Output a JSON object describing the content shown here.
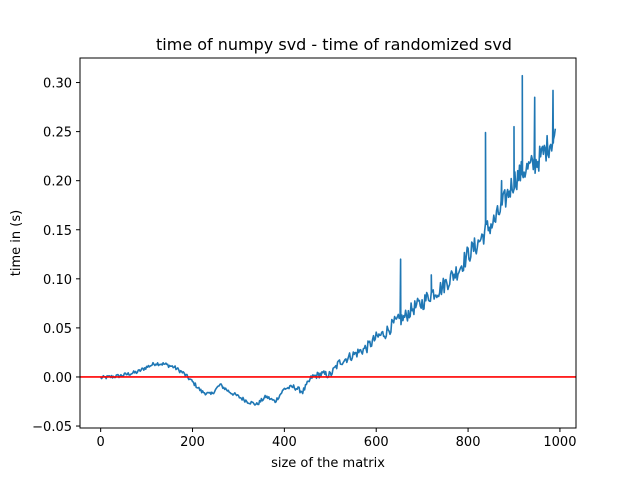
{
  "chart_data": {
    "type": "line",
    "title": "time of numpy svd - time of randomized svd",
    "xlabel": "size of the matrix",
    "ylabel": "time in (s)",
    "xlim": [
      -45,
      1035
    ],
    "ylim": [
      -0.052,
      0.325
    ],
    "xticks": [
      0,
      200,
      400,
      600,
      800,
      1000
    ],
    "yticks": [
      -0.05,
      0.0,
      0.05,
      0.1,
      0.15,
      0.2,
      0.25,
      0.3
    ],
    "xtick_labels": [
      "0",
      "200",
      "400",
      "600",
      "800",
      "1000"
    ],
    "ytick_labels": [
      "−0.05",
      "0.00",
      "0.05",
      "0.10",
      "0.15",
      "0.20",
      "0.25",
      "0.30"
    ],
    "grid": false,
    "series_color": "#1f77b4",
    "reference_line": {
      "y": 0.0,
      "color": "#ff0000"
    },
    "series": [
      {
        "x": [
          0,
          20,
          40,
          60,
          80,
          100,
          120,
          140,
          160,
          180,
          200,
          220,
          240,
          260,
          280,
          300,
          320,
          340,
          360,
          380,
          400,
          420,
          440,
          460,
          480,
          500,
          520,
          540,
          560,
          580,
          600,
          620,
          640,
          660,
          680,
          700,
          720,
          740,
          760,
          780,
          800,
          820,
          840,
          860,
          880,
          900,
          920,
          940,
          960,
          980,
          990
        ],
        "y": [
          -0.001,
          0.0,
          0.001,
          0.003,
          0.005,
          0.01,
          0.014,
          0.013,
          0.01,
          0.004,
          -0.005,
          -0.015,
          -0.018,
          -0.008,
          -0.015,
          -0.02,
          -0.025,
          -0.028,
          -0.02,
          -0.025,
          -0.012,
          -0.01,
          -0.015,
          0.0,
          0.003,
          0.002,
          0.015,
          0.02,
          0.025,
          0.03,
          0.04,
          0.045,
          0.055,
          0.06,
          0.07,
          0.075,
          0.085,
          0.09,
          0.1,
          0.11,
          0.125,
          0.135,
          0.15,
          0.16,
          0.18,
          0.2,
          0.21,
          0.215,
          0.225,
          0.24,
          0.245
        ]
      }
    ],
    "spikes": [
      {
        "x": 653,
        "y": 0.12
      },
      {
        "x": 720,
        "y": 0.104
      },
      {
        "x": 838,
        "y": 0.249
      },
      {
        "x": 873,
        "y": 0.2
      },
      {
        "x": 900,
        "y": 0.255
      },
      {
        "x": 918,
        "y": 0.307
      },
      {
        "x": 945,
        "y": 0.285
      },
      {
        "x": 985,
        "y": 0.292
      }
    ]
  }
}
